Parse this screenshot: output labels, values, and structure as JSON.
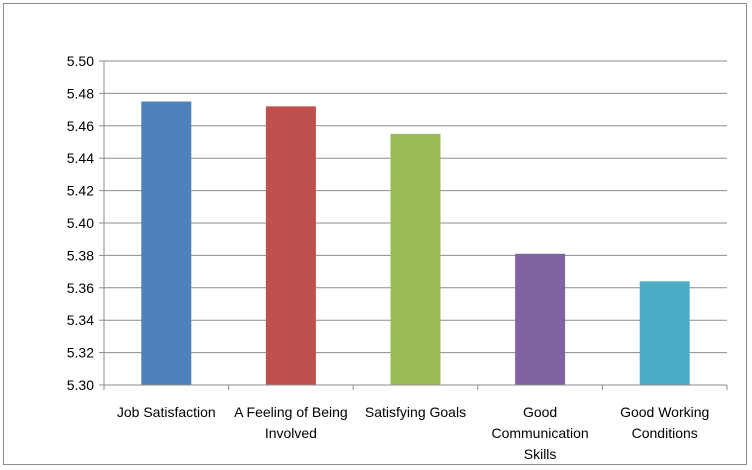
{
  "chart_data": {
    "type": "bar",
    "categories": [
      [
        "Job Satisfaction"
      ],
      [
        "A Feeling of Being",
        "Involved"
      ],
      [
        "Satisfying Goals"
      ],
      [
        "Good",
        "Communication",
        "Skills"
      ],
      [
        "Good Working",
        "Conditions"
      ]
    ],
    "values": [
      5.475,
      5.472,
      5.455,
      5.381,
      5.364
    ],
    "colors": [
      "#4f81bd",
      "#c0504d",
      "#9bbb59",
      "#8064a2",
      "#4bacc6"
    ],
    "ylim": [
      5.3,
      5.5
    ],
    "yticks": [
      "5.30",
      "5.32",
      "5.34",
      "5.36",
      "5.38",
      "5.40",
      "5.42",
      "5.44",
      "5.46",
      "5.48",
      "5.50"
    ],
    "grid": true,
    "legend": "none"
  }
}
